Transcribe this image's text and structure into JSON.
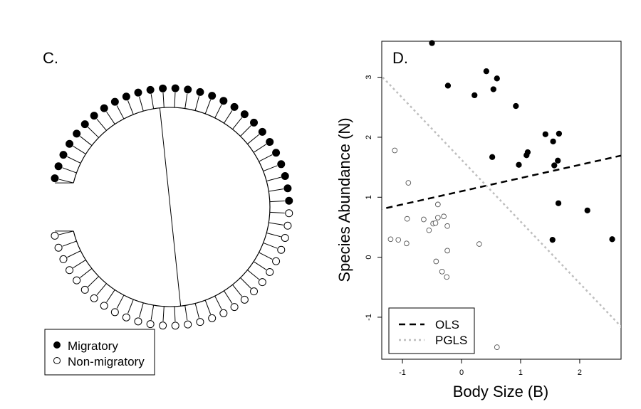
{
  "panel_c": {
    "label": "C.",
    "legend": {
      "migratory": "Migratory",
      "non_migratory": "Non-migratory"
    },
    "tree": {
      "tips_migratory": 28,
      "tips_non_migratory": 28,
      "colors": {
        "migratory": "#000000",
        "non_migratory": "#ffffff",
        "stroke": "#000000"
      }
    }
  },
  "chart_data": {
    "type": "scatter",
    "panel_label": "D.",
    "xlabel": "Body Size (B)",
    "ylabel": "Species Abundance (N)",
    "xlim": [
      -1.35,
      2.7
    ],
    "ylim": [
      -1.7,
      3.6
    ],
    "xticks": [
      -1,
      0,
      1,
      2
    ],
    "yticks": [
      -1,
      0,
      1,
      2,
      3
    ],
    "grid": false,
    "legend_position": "bottom-left",
    "series": [
      {
        "name": "Migratory",
        "marker": "filled",
        "points": [
          [
            -0.5,
            3.57
          ],
          [
            0.42,
            3.1
          ],
          [
            0.6,
            2.98
          ],
          [
            -0.23,
            2.86
          ],
          [
            0.54,
            2.8
          ],
          [
            0.22,
            2.7
          ],
          [
            0.92,
            2.52
          ],
          [
            1.42,
            2.05
          ],
          [
            1.65,
            2.06
          ],
          [
            1.55,
            1.93
          ],
          [
            1.12,
            1.75
          ],
          [
            1.1,
            1.7
          ],
          [
            0.52,
            1.67
          ],
          [
            1.63,
            1.61
          ],
          [
            0.97,
            1.54
          ],
          [
            1.57,
            1.53
          ],
          [
            1.64,
            0.9
          ],
          [
            2.13,
            0.78
          ],
          [
            1.54,
            0.29
          ],
          [
            2.55,
            0.3
          ]
        ]
      },
      {
        "name": "Non-migratory",
        "marker": "open",
        "points": [
          [
            -1.13,
            1.78
          ],
          [
            -0.9,
            1.24
          ],
          [
            -0.4,
            0.88
          ],
          [
            -0.92,
            0.64
          ],
          [
            -0.64,
            0.63
          ],
          [
            -0.3,
            0.68
          ],
          [
            -0.4,
            0.66
          ],
          [
            -0.55,
            0.45
          ],
          [
            -0.48,
            0.56
          ],
          [
            -0.44,
            0.57
          ],
          [
            -0.24,
            0.52
          ],
          [
            -1.2,
            0.3
          ],
          [
            -1.07,
            0.29
          ],
          [
            -0.93,
            0.23
          ],
          [
            0.3,
            0.22
          ],
          [
            -0.24,
            0.11
          ],
          [
            -0.43,
            -0.07
          ],
          [
            -0.33,
            -0.24
          ],
          [
            -0.25,
            -0.33
          ],
          [
            0.6,
            -1.5
          ]
        ]
      }
    ],
    "lines": [
      {
        "name": "OLS",
        "style": "dashed",
        "color": "#000000",
        "intercept": 1.1,
        "slope": 0.22
      },
      {
        "name": "PGLS",
        "style": "dotted",
        "color": "#bebebe",
        "intercept": 1.625,
        "slope": -1.03
      }
    ]
  }
}
